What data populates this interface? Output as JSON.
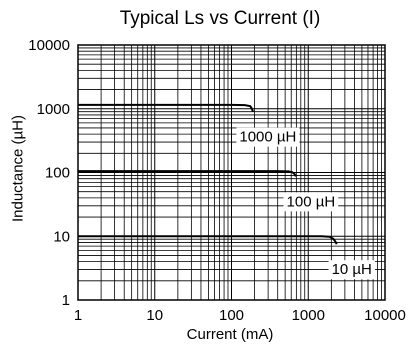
{
  "chart_data": {
    "type": "line",
    "title": "Typical Ls vs Current (I)",
    "xlabel": "Current (mA)",
    "ylabel": "Inductance (µH)",
    "x_scale": "log",
    "y_scale": "log",
    "xlim": [
      1,
      10000
    ],
    "ylim": [
      1,
      10000
    ],
    "x_ticks": [
      "1",
      "10",
      "100",
      "1000",
      "10000"
    ],
    "y_ticks": [
      "1",
      "10",
      "100",
      "1000",
      "10000"
    ],
    "grid": true,
    "series": [
      {
        "name": "1000 µH",
        "points": [
          [
            1,
            1150
          ],
          [
            100,
            1150
          ],
          [
            150,
            1140
          ],
          [
            175,
            1100
          ],
          [
            185,
            1000
          ],
          [
            190,
            900
          ]
        ]
      },
      {
        "name": "100 µH",
        "points": [
          [
            1,
            105
          ],
          [
            400,
            105
          ],
          [
            550,
            104
          ],
          [
            620,
            101
          ],
          [
            660,
            95
          ],
          [
            690,
            87
          ]
        ]
      },
      {
        "name": "10 µH",
        "points": [
          [
            1,
            10
          ],
          [
            1500,
            10
          ],
          [
            1900,
            9.8
          ],
          [
            2100,
            9.2
          ],
          [
            2250,
            8.3
          ],
          [
            2350,
            7.5
          ]
        ]
      }
    ]
  }
}
